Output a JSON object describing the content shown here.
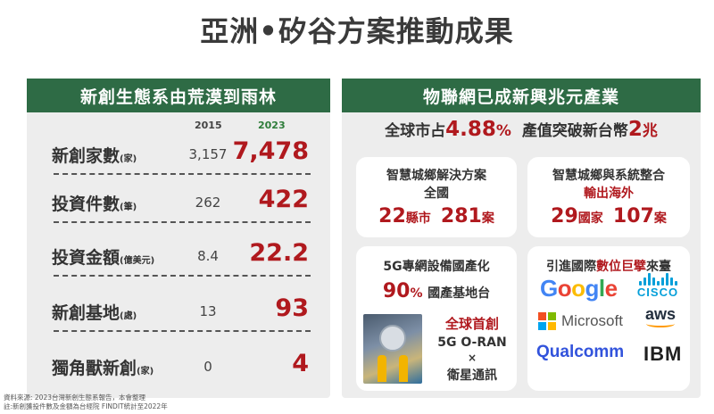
{
  "title": "亞洲•矽谷方案推動成果",
  "left": {
    "header": "新創生態系由荒漠到雨林",
    "year_a": "2015",
    "year_b": "2023",
    "rows": [
      {
        "label": "新創家數",
        "unit": "(家)",
        "v2015": "3,157",
        "v2023": "7,478"
      },
      {
        "label": "投資件數",
        "unit": "(筆)",
        "v2015": "262",
        "v2023": "422"
      },
      {
        "label": "投資金額",
        "unit": "(億美元)",
        "v2015": "8.4",
        "v2023": "22.2"
      },
      {
        "label": "新創基地",
        "unit": "(處)",
        "v2015": "13",
        "v2023": "93"
      },
      {
        "label": "獨角獸新創",
        "unit": "(家)",
        "v2015": "0",
        "v2023": "4"
      }
    ],
    "source_1": "資料來源: 2023台灣新創生態系報告，本會整理",
    "source_2": "註:新創獲投件數及金額為台經院 FINDIT統計至2022年"
  },
  "right": {
    "header": "物聯網已成新興兆元產業",
    "headline": {
      "p1": "全球市占",
      "share_num": "4.88",
      "share_pct": "%",
      "p2": "產值突破新台幣",
      "value_num": "2",
      "value_unit": "兆"
    },
    "card1": {
      "line1": "智慧城鄉解決方案",
      "line2": "全國",
      "n1": "22",
      "u1": "縣市",
      "n2": "281",
      "u2": "案"
    },
    "card2": {
      "line1": "智慧城鄉與系統整合",
      "line2": "輸出海外",
      "n1": "29",
      "u1": "國家",
      "n2": "107",
      "u2": "案"
    },
    "card3": {
      "line1": "5G專網設備國產化",
      "pct_num": "90",
      "pct_sign": "%",
      "pct_text": "國產基地台",
      "o1": "全球首創",
      "o2": "5G O-RAN",
      "o3": "×",
      "o4": "衛星通訊"
    },
    "card4": {
      "t1": "引進國際",
      "t2": "數位巨擘",
      "t3": "來臺",
      "logos": {
        "google": "Google",
        "cisco": "CISCO",
        "microsoft": "Microsoft",
        "aws": "aws",
        "qualcomm": "Qualcomm",
        "ibm": "IBM"
      }
    }
  },
  "colors": {
    "header_green": "#2e6b45",
    "accent_red": "#b0191e",
    "year_green": "#2e7d3a",
    "panel_gray": "#ededed"
  }
}
